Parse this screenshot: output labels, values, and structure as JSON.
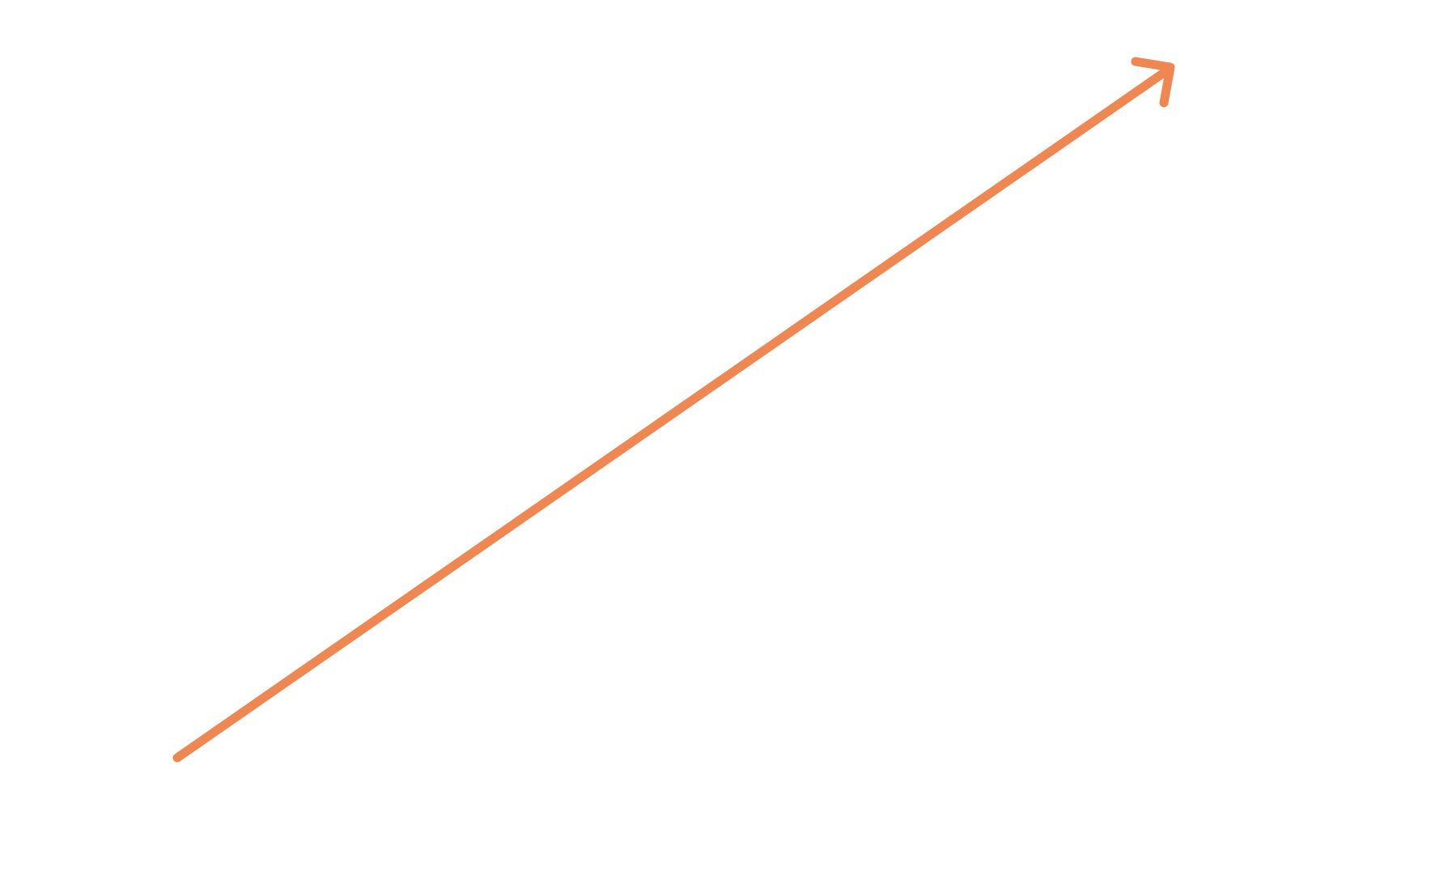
{
  "diagram": {
    "background_color": "#ffffff",
    "arrow": {
      "icon": "diagonal-up-right-arrow-icon",
      "color": "#ee8752",
      "direction": "up-right"
    }
  }
}
